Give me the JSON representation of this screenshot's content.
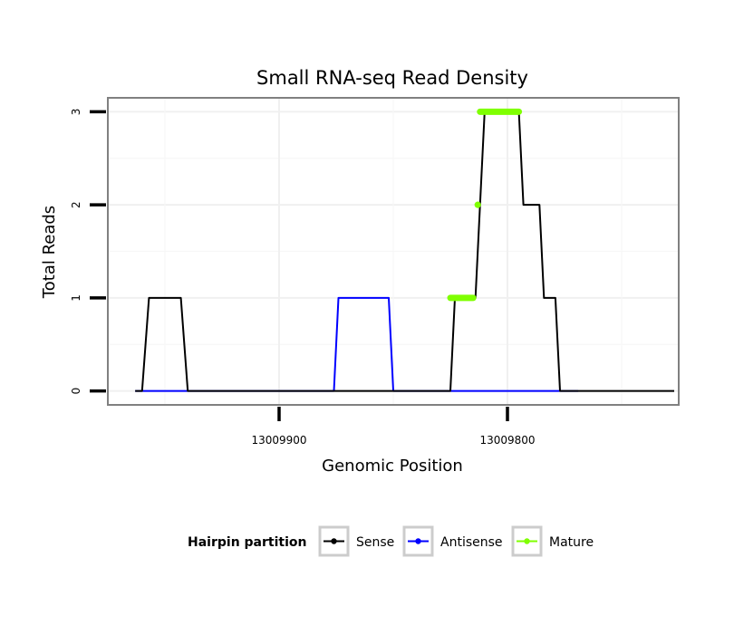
{
  "chart_data": {
    "type": "line",
    "title": "Small RNA-seq Read Density",
    "xlabel": "Genomic Position",
    "ylabel": "Total Reads",
    "x_reversed": true,
    "xlim": [
      13009975,
      13009725
    ],
    "ylim": [
      -0.15,
      3.15
    ],
    "x_ticks": [
      {
        "value": 13009900,
        "label": "13009900"
      },
      {
        "value": 13009800,
        "label": "13009800"
      }
    ],
    "y_ticks": [
      {
        "value": 0,
        "label": "0"
      },
      {
        "value": 1,
        "label": "1"
      },
      {
        "value": 2,
        "label": "2"
      },
      {
        "value": 3,
        "label": "3"
      }
    ],
    "grid": true,
    "legend_position": "bottom",
    "legend_title": "Hairpin partition",
    "series": [
      {
        "name": "Sense",
        "color": "#000000",
        "x": [
          13009963,
          13009960,
          13009957,
          13009943,
          13009940,
          13009825,
          13009823,
          13009814,
          13009810,
          13009795,
          13009793,
          13009786,
          13009784,
          13009779,
          13009777,
          13009771,
          13009769,
          13009727
        ],
        "y": [
          0,
          0,
          1,
          1,
          0,
          0,
          1,
          1,
          3,
          3,
          2,
          2,
          1,
          1,
          0,
          0,
          0,
          0
        ]
      },
      {
        "name": "Antisense",
        "color": "#0000ff",
        "x": [
          13009963,
          13009876,
          13009874,
          13009852,
          13009850,
          13009769
        ],
        "y": [
          0,
          0,
          1,
          1,
          0,
          0
        ]
      },
      {
        "name": "Mature",
        "color": "#7fff00",
        "segments": [
          {
            "x": [
              13009825,
              13009815
            ],
            "y": [
              1,
              1
            ]
          },
          {
            "x": [
              13009813,
              13009813
            ],
            "y": [
              2,
              2
            ]
          },
          {
            "x": [
              13009812,
              13009795
            ],
            "y": [
              3,
              3
            ]
          }
        ]
      }
    ]
  }
}
